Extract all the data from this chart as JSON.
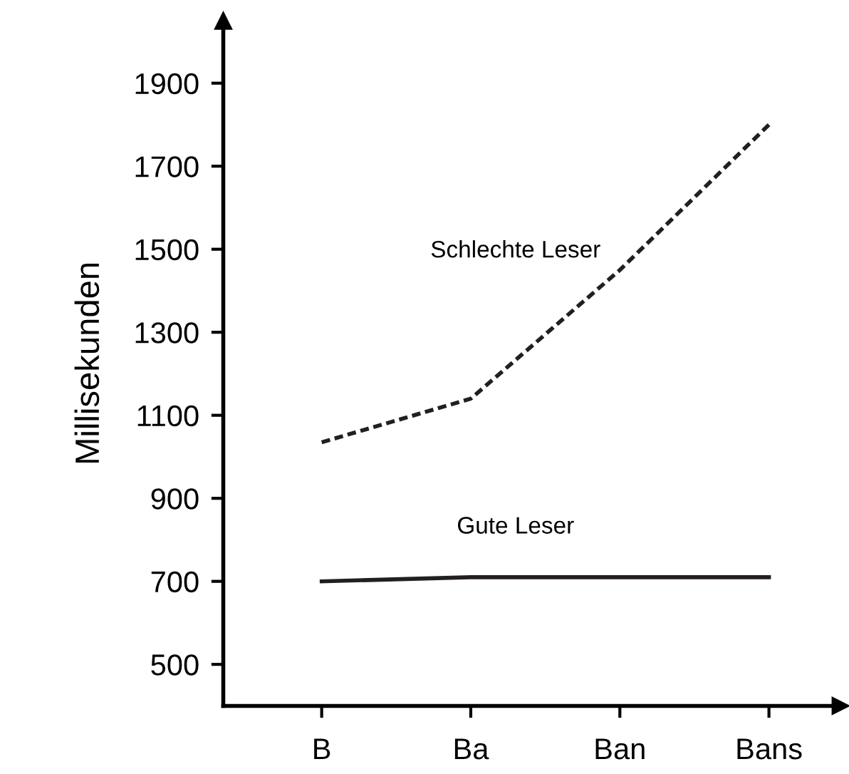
{
  "chart_data": {
    "type": "line",
    "ylabel": "Millisekunden",
    "categories": [
      "B",
      "Ba",
      "Ban",
      "Bans"
    ],
    "series": [
      {
        "color": "#231f20",
        "line_style": "dashed",
        "values": [
          1035,
          1140,
          1450,
          1800
        ]
      },
      {
        "color": "#231f20",
        "line_style": "solid",
        "values": [
          700,
          710,
          710,
          710
        ]
      }
    ],
    "annotations": [
      "Schlechte Leser",
      "Gute Leser"
    ],
    "ylim": [
      400,
      2050
    ],
    "yticks": [
      500,
      700,
      900,
      1100,
      1300,
      1500,
      1700,
      1900
    ],
    "grid": false,
    "legend": false,
    "marker": "none"
  }
}
